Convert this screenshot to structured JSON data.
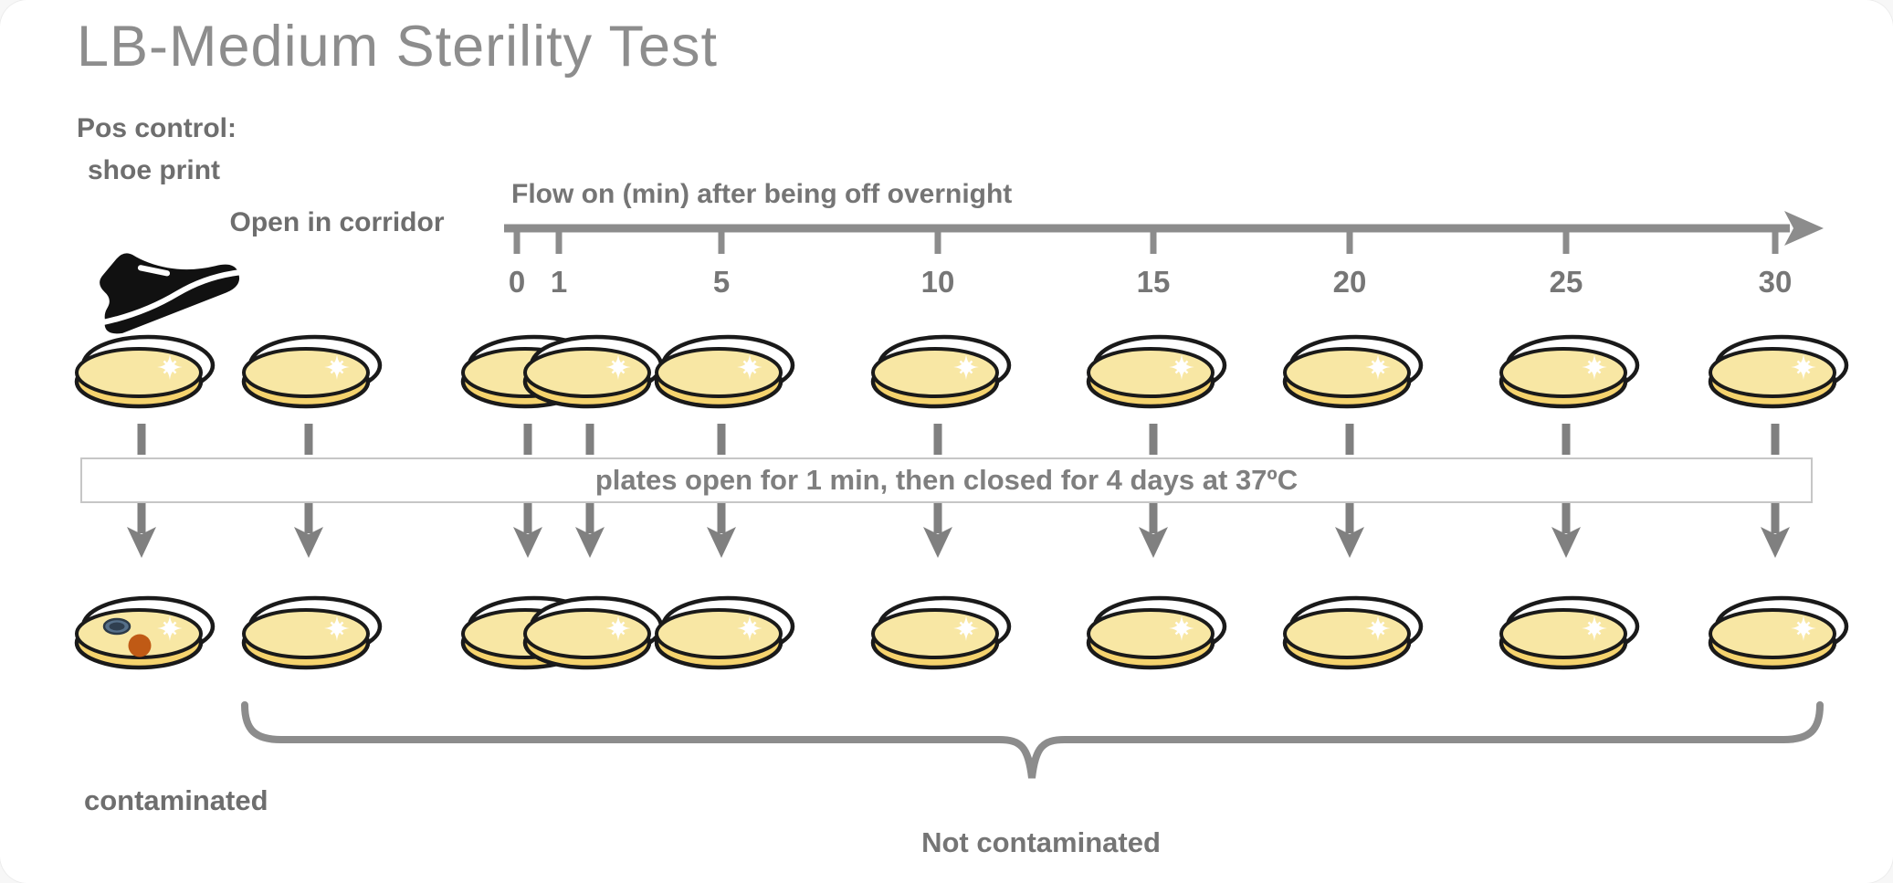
{
  "title": "LB-Medium Sterility Test",
  "labels": {
    "pos_control_line1": "Pos control:",
    "pos_control_line2": "shoe print",
    "open_in_corridor": "Open in corridor",
    "axis_title": "Flow on (min) after being off overnight",
    "banner": "plates open for 1 min, then closed for 4 days at 37ºC",
    "contaminated": "contaminated",
    "not_contaminated": "Not contaminated"
  },
  "axis": {
    "unit": "min",
    "ticks": [
      "0",
      "1",
      "5",
      "10",
      "15",
      "20",
      "25",
      "30"
    ],
    "tick_values": [
      0,
      1,
      5,
      10,
      15,
      20,
      25,
      30
    ]
  },
  "plates": {
    "columns": [
      "shoe print pos control",
      "open in corridor",
      "flow on 0 min",
      "flow on 1 min",
      "flow on 5 min",
      "flow on 10 min",
      "flow on 15 min",
      "flow on 20 min",
      "flow on 25 min",
      "flow on 30 min"
    ],
    "rows": 2,
    "contaminated_column_index": 0,
    "not_contaminated_column_indexes": [
      1,
      2,
      3,
      4,
      5,
      6,
      7,
      8,
      9
    ]
  },
  "colors": {
    "agar": "#F8E7A4",
    "agar_side": "#F5D36E",
    "dish_outline": "#1a1a1a",
    "accent_gray": "#8C8C8C",
    "dash_gray": "#808080",
    "tick_label_gray": "#767676",
    "label_gray": "#6e6e6e",
    "banner_border": "#c6c6c6",
    "colony_blue": "#56708A",
    "colony_blue_dark": "#2f3f50",
    "colony_orange": "#C05A15",
    "shoe_black": "#111111"
  }
}
